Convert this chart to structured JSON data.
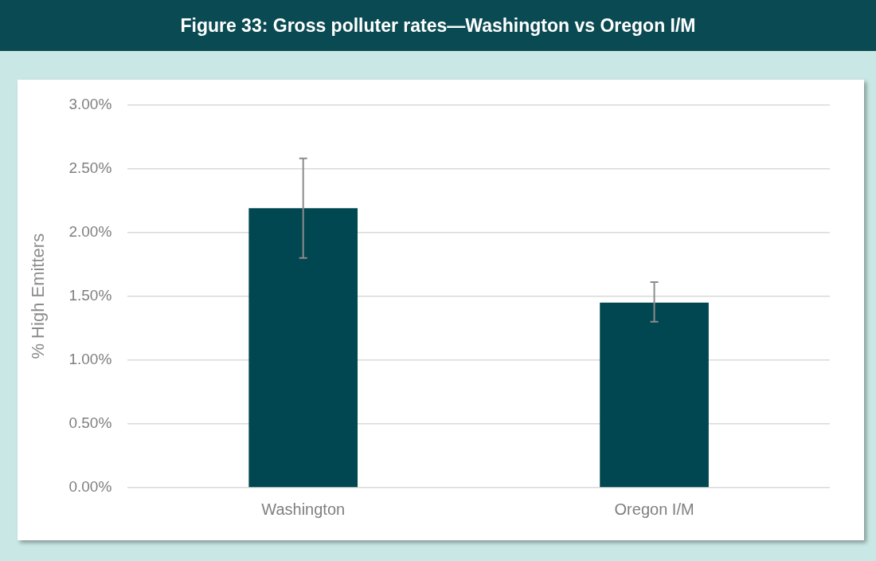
{
  "chart_data": {
    "type": "bar",
    "title": "Figure 33: Gross polluter rates—Washington vs Oregon I/M",
    "ylabel": "% High Emitters",
    "categories": [
      "Washington",
      "Oregon I/M"
    ],
    "values": [
      2.19,
      1.45
    ],
    "errors": [
      [
        1.8,
        2.58
      ],
      [
        1.3,
        1.61
      ]
    ],
    "color": "#014751",
    "ylim": [
      0,
      3
    ],
    "yticks": [
      {
        "value": 0,
        "label": "0.00%"
      },
      {
        "value": 0.5,
        "label": "0.50%"
      },
      {
        "value": 1,
        "label": "1.00%"
      },
      {
        "value": 1.5,
        "label": "1.50%"
      },
      {
        "value": 2,
        "label": "2.00%"
      },
      {
        "value": 2.5,
        "label": "2.50%"
      },
      {
        "value": 3,
        "label": "3.00%"
      }
    ],
    "grid": "y",
    "legend": false
  }
}
